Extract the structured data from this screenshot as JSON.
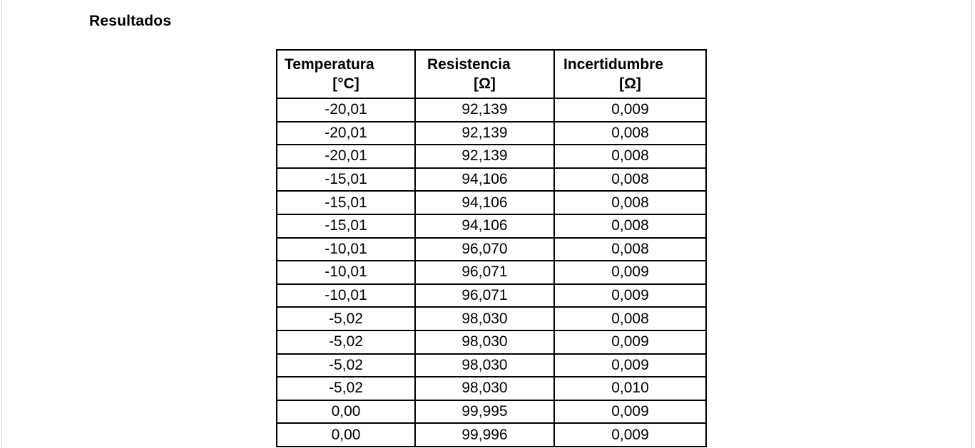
{
  "section": {
    "title": "Resultados"
  },
  "table": {
    "headers": [
      {
        "name": "Temperatura",
        "unit": "[°C]"
      },
      {
        "name": "Resistencia",
        "unit": "[Ω]"
      },
      {
        "name": "Incertidumbre",
        "unit": "[Ω]"
      }
    ],
    "rows": [
      [
        "-20,01",
        "92,139",
        "0,009"
      ],
      [
        "-20,01",
        "92,139",
        "0,008"
      ],
      [
        "-20,01",
        "92,139",
        "0,008"
      ],
      [
        "-15,01",
        "94,106",
        "0,008"
      ],
      [
        "-15,01",
        "94,106",
        "0,008"
      ],
      [
        "-15,01",
        "94,106",
        "0,008"
      ],
      [
        "-10,01",
        "96,070",
        "0,008"
      ],
      [
        "-10,01",
        "96,071",
        "0,009"
      ],
      [
        "-10,01",
        "96,071",
        "0,009"
      ],
      [
        "-5,02",
        "98,030",
        "0,008"
      ],
      [
        "-5,02",
        "98,030",
        "0,009"
      ],
      [
        "-5,02",
        "98,030",
        "0,009"
      ],
      [
        "-5,02",
        "98,030",
        "0,010"
      ],
      [
        "0,00",
        "99,995",
        "0,009"
      ],
      [
        "0,00",
        "99,996",
        "0,009"
      ]
    ]
  }
}
